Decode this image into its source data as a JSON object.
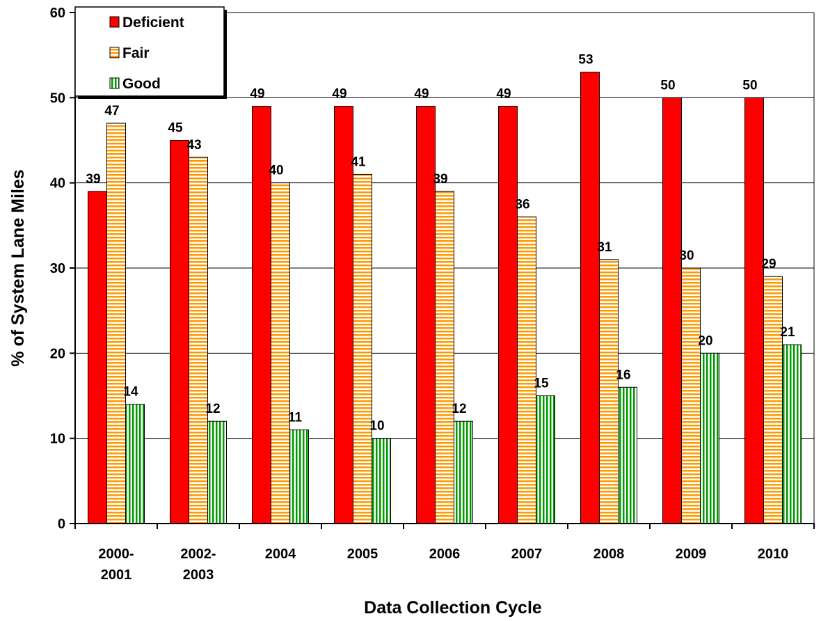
{
  "chart_data": {
    "type": "bar",
    "title": "",
    "xlabel": "Data Collection Cycle",
    "ylabel": "% of System Lane Miles",
    "ylim": [
      0,
      60
    ],
    "yticks": [
      0,
      10,
      20,
      30,
      40,
      50,
      60
    ],
    "grid": true,
    "legend_position": "top-left",
    "categories": [
      [
        "2000-",
        "2001"
      ],
      [
        "2002-",
        "2003"
      ],
      [
        "2004"
      ],
      [
        "2005"
      ],
      [
        "2006"
      ],
      [
        "2007"
      ],
      [
        "2008"
      ],
      [
        "2009"
      ],
      [
        "2010"
      ]
    ],
    "series": [
      {
        "name": "Deficient",
        "values": [
          39,
          45,
          49,
          49,
          49,
          49,
          53,
          50,
          50
        ],
        "color": "#ff0000",
        "pattern": "solid"
      },
      {
        "name": "Fair",
        "values": [
          47,
          43,
          40,
          41,
          39,
          36,
          31,
          30,
          29
        ],
        "color": "#ff9900",
        "pattern": "horizontal-stripes"
      },
      {
        "name": "Good",
        "values": [
          14,
          12,
          11,
          10,
          12,
          15,
          16,
          20,
          21
        ],
        "color": "#009900",
        "pattern": "vertical-stripes"
      }
    ]
  }
}
